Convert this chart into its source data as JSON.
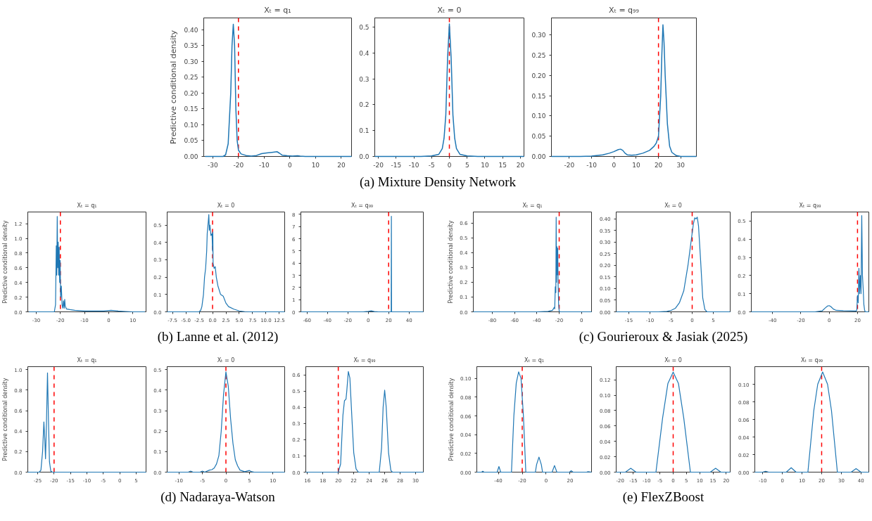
{
  "chart_data": [
    {
      "type": "line",
      "title": "Xₜ = q₁",
      "ylabel": "Predictive conditional density",
      "xlim": [
        -33.5,
        24
      ],
      "ylim": [
        0,
        0.437
      ],
      "xticks": [
        -30,
        -20,
        -10,
        0,
        10,
        20
      ],
      "yticks": [
        {
          "value": 0,
          "label": "0.00"
        },
        0.05,
        {
          "value": 0.1,
          "label": "0.10"
        },
        0.15,
        {
          "value": 0.2,
          "label": "0.20"
        },
        0.25,
        {
          "value": 0.3,
          "label": "0.30"
        },
        0.35,
        {
          "value": 0.4,
          "label": "0.40"
        }
      ],
      "series": [
        {
          "color": "#1f77b4",
          "x": [
            -33,
            -26,
            -25,
            -24,
            -23,
            -22.5,
            -22,
            -21.5,
            -21,
            -20.5,
            -20,
            -19,
            -17,
            -15,
            -13,
            -11,
            -9,
            -7,
            -5,
            -4,
            -3,
            -1,
            1,
            3,
            4,
            6,
            24
          ],
          "values": [
            0,
            0,
            0.005,
            0.04,
            0.2,
            0.35,
            0.417,
            0.35,
            0.15,
            0.05,
            0.02,
            0.008,
            0.003,
            0.001,
            0.003,
            0.009,
            0.011,
            0.013,
            0.015,
            0.01,
            0.004,
            0.002,
            0.001,
            0.002,
            0.001,
            0,
            0
          ]
        }
      ],
      "ref_lines": [
        {
          "axis": "x",
          "value": -20,
          "color": "#ff0000",
          "line_style": "dashed"
        }
      ]
    },
    {
      "type": "line",
      "title": "Xₜ = 0",
      "annotations": [
        "(a) Mixture Density Network"
      ],
      "xlim": [
        -21,
        21
      ],
      "ylim": [
        0,
        0.535
      ],
      "xticks": [
        -20,
        -15,
        -10,
        -5,
        0,
        5,
        10,
        15,
        20
      ],
      "yticks": [
        {
          "value": 0,
          "label": "0.0"
        },
        0.1,
        0.2,
        0.3,
        0.4,
        0.5
      ],
      "series": [
        {
          "color": "#1f77b4",
          "x": [
            -21,
            -8,
            -5,
            -3,
            -2,
            -1.5,
            -1,
            -0.5,
            0,
            0.5,
            1,
            1.5,
            2,
            3,
            5,
            8,
            21
          ],
          "values": [
            0,
            0,
            0.002,
            0.008,
            0.03,
            0.07,
            0.16,
            0.38,
            0.512,
            0.38,
            0.16,
            0.07,
            0.03,
            0.008,
            0.002,
            0,
            0
          ]
        }
      ],
      "ref_lines": [
        {
          "axis": "x",
          "value": 0,
          "color": "#ff0000",
          "line_style": "dashed"
        }
      ]
    },
    {
      "type": "line",
      "title": "Xₜ = q₉₉",
      "xlim": [
        -28,
        37
      ],
      "ylim": [
        0,
        0.342
      ],
      "xticks": [
        -20,
        -10,
        0,
        10,
        20,
        30
      ],
      "yticks": [
        {
          "value": 0,
          "label": "0.00"
        },
        0.05,
        {
          "value": 0.1,
          "label": "0.10"
        },
        0.15,
        {
          "value": 0.2,
          "label": "0.20"
        },
        0.25,
        {
          "value": 0.3,
          "label": "0.30"
        }
      ],
      "series": [
        {
          "color": "#1f77b4",
          "x": [
            -28,
            -15,
            -10,
            -5,
            -2,
            0,
            2,
            3,
            4,
            5,
            6,
            8,
            10,
            13,
            16,
            18,
            19,
            20,
            21,
            21.5,
            22,
            22.5,
            23,
            24,
            25,
            26,
            28,
            30,
            37
          ],
          "values": [
            0,
            0,
            0.001,
            0.004,
            0.008,
            0.012,
            0.017,
            0.018,
            0.015,
            0.008,
            0.004,
            0.003,
            0.004,
            0.008,
            0.015,
            0.025,
            0.033,
            0.05,
            0.15,
            0.25,
            0.325,
            0.28,
            0.2,
            0.08,
            0.025,
            0.01,
            0.002,
            0,
            0
          ]
        }
      ],
      "ref_lines": [
        {
          "axis": "x",
          "value": 20,
          "color": "#ff0000",
          "line_style": "dashed"
        }
      ]
    },
    {
      "type": "line",
      "title": "Xₜ = q₁",
      "ylabel": "Predictive conditional density",
      "xlim": [
        -33.5,
        15.5
      ],
      "ylim": [
        0,
        1.36
      ],
      "xticks": [
        -30,
        -20,
        -10,
        0,
        10
      ],
      "yticks": [
        {
          "value": 0,
          "label": "0.0"
        },
        0.2,
        0.4,
        0.6,
        0.8,
        {
          "value": 1,
          "label": "1.0"
        },
        1.2
      ],
      "series": [
        {
          "color": "#1f77b4",
          "x": [
            -33,
            -22.5,
            -22,
            -21.7,
            -21.5,
            -21.3,
            -21.1,
            -20.9,
            -20.7,
            -20.5,
            -20.3,
            -20.1,
            -19.9,
            -19.6,
            -19.3,
            -19,
            -18.7,
            -18.4,
            -18.2,
            -18,
            -17.5,
            -16,
            -14,
            -10,
            -5,
            -2,
            1,
            4,
            7,
            10,
            15
          ],
          "values": [
            0,
            0,
            0.1,
            0.9,
            0.5,
            1.3,
            0.6,
            0.95,
            0.5,
            0.88,
            0.4,
            0.7,
            0.2,
            0.35,
            0.1,
            0.05,
            0.15,
            0.05,
            0.17,
            0.08,
            0.04,
            0.03,
            0.02,
            0.01,
            0.01,
            0.01,
            0.02,
            0.01,
            0.005,
            0,
            0
          ]
        }
      ],
      "ref_lines": [
        {
          "axis": "x",
          "value": -20,
          "color": "#ff0000",
          "line_style": "dashed"
        }
      ]
    },
    {
      "type": "line",
      "title": "Xₜ = 0",
      "annotations": [
        "(b) Lanne et al. (2012)"
      ],
      "xlim": [
        -8.5,
        13.5
      ],
      "ylim": [
        0,
        0.575
      ],
      "xticks": [
        -7.5,
        {
          "value": -5,
          "label": "-5.0"
        },
        -2.5,
        {
          "value": 0,
          "label": "0.0"
        },
        2.5,
        {
          "value": 5,
          "label": "5.0"
        },
        7.5,
        {
          "value": 10,
          "label": "10.0"
        },
        12.5
      ],
      "yticks": [
        {
          "value": 0,
          "label": "0.0"
        },
        0.1,
        0.2,
        0.3,
        0.4,
        0.5
      ],
      "series": [
        {
          "color": "#1f77b4",
          "x": [
            -8.5,
            -2.5,
            -2.2,
            -2,
            -1.7,
            -1.5,
            -1.3,
            -1.1,
            -1,
            -0.8,
            -0.7,
            -0.6,
            -0.5,
            -0.3,
            -0.1,
            0,
            0.05,
            0.1,
            0.3,
            0.5,
            0.7,
            1,
            1.5,
            2,
            2.5,
            3,
            4,
            5,
            6,
            7,
            13.5
          ],
          "values": [
            0,
            0,
            0.01,
            0.03,
            0.1,
            0.2,
            0.25,
            0.35,
            0.45,
            0.52,
            0.56,
            0.47,
            0.5,
            0.44,
            0.45,
            0.35,
            0.46,
            0.28,
            0.25,
            0.26,
            0.2,
            0.15,
            0.1,
            0.09,
            0.05,
            0.03,
            0.015,
            0.005,
            0.001,
            0,
            0
          ]
        }
      ],
      "ref_lines": [
        {
          "axis": "x",
          "value": 0,
          "color": "#ff0000",
          "line_style": "dashed"
        }
      ]
    },
    {
      "type": "line",
      "title": "Xₜ = q₉₉",
      "xlim": [
        -66,
        54
      ],
      "ylim": [
        0,
        8.2
      ],
      "xticks": [
        -60,
        -40,
        -20,
        0,
        20,
        40
      ],
      "yticks": [
        0,
        1,
        2,
        3,
        4,
        5,
        6,
        7,
        8
      ],
      "series": [
        {
          "color": "#1f77b4",
          "x": [
            -66,
            -5,
            0,
            3,
            6,
            10,
            22.5,
            22.7,
            22.9,
            54
          ],
          "values": [
            0,
            0,
            0.04,
            0.08,
            0.02,
            0,
            0,
            7.85,
            0,
            0
          ]
        }
      ],
      "ref_lines": [
        {
          "axis": "x",
          "value": 20,
          "color": "#ff0000",
          "line_style": "dashed"
        }
      ]
    },
    {
      "type": "line",
      "title": "Xₜ = q₁",
      "ylabel": "Predictive conditional density",
      "xlim": [
        -97,
        9
      ],
      "ylim": [
        0,
        0.675
      ],
      "xticks": [
        -80,
        -60,
        -40,
        -20,
        0
      ],
      "yticks": [
        {
          "value": 0,
          "label": "0.0"
        },
        0.1,
        0.2,
        0.3,
        0.4,
        0.5,
        0.6
      ],
      "series": [
        {
          "color": "#1f77b4",
          "x": [
            -97,
            -40,
            -30,
            -26,
            -24.5,
            -24,
            -23.5,
            -23,
            -22.7,
            -22.4,
            -22,
            -21.7,
            -21.3,
            -21,
            -20.5,
            -20,
            -19.5,
            9
          ],
          "values": [
            0,
            0,
            0.003,
            0.01,
            0.03,
            0.02,
            0.17,
            0.13,
            0.64,
            0.2,
            0.44,
            0.25,
            0.43,
            0.2,
            0.05,
            0.005,
            0,
            0
          ]
        }
      ],
      "ref_lines": [
        {
          "axis": "x",
          "value": -20,
          "color": "#ff0000",
          "line_style": "dashed"
        }
      ]
    },
    {
      "type": "line",
      "title": "Xₜ = 0",
      "annotations": [
        "(c) Gourieroux & Jasiak (2025)"
      ],
      "xlim": [
        -18,
        9
      ],
      "ylim": [
        0,
        0.43
      ],
      "xticks": [
        -15,
        -10,
        -5,
        0,
        5
      ],
      "yticks": [
        {
          "value": 0,
          "label": "0.00"
        },
        0.05,
        {
          "value": 0.1,
          "label": "0.10"
        },
        0.15,
        {
          "value": 0.2,
          "label": "0.20"
        },
        0.25,
        {
          "value": 0.3,
          "label": "0.30"
        },
        0.35,
        {
          "value": 0.4,
          "label": "0.40"
        }
      ],
      "series": [
        {
          "color": "#1f77b4",
          "x": [
            -18,
            -8,
            -6,
            -5,
            -4,
            -3,
            -2,
            -1,
            -0.5,
            0,
            0.3,
            0.6,
            0.9,
            1.2,
            1.5,
            2,
            2.5,
            3,
            3.5,
            9
          ],
          "values": [
            0,
            0,
            0.002,
            0.006,
            0.015,
            0.04,
            0.09,
            0.2,
            0.27,
            0.34,
            0.38,
            0.405,
            0.4,
            0.408,
            0.37,
            0.22,
            0.06,
            0.01,
            0,
            0
          ]
        }
      ],
      "ref_lines": [
        {
          "axis": "x",
          "value": 0,
          "color": "#ff0000",
          "line_style": "dashed"
        }
      ]
    },
    {
      "type": "line",
      "title": "Xₜ = q₉₉",
      "xlim": [
        -55,
        28
      ],
      "ylim": [
        0,
        0.55
      ],
      "xticks": [
        -40,
        -20,
        0,
        20
      ],
      "yticks": [
        {
          "value": 0,
          "label": "0.0"
        },
        0.1,
        0.2,
        0.3,
        0.4,
        0.5
      ],
      "series": [
        {
          "color": "#1f77b4",
          "x": [
            -55,
            -10,
            -5,
            -3,
            -1,
            0,
            1,
            3,
            5,
            10,
            15,
            19,
            19.5,
            20,
            20.5,
            21,
            21.5,
            22,
            22.5,
            23,
            23.5,
            24,
            24.5,
            25,
            25.5,
            28
          ],
          "values": [
            0,
            0,
            0.005,
            0.02,
            0.033,
            0.034,
            0.03,
            0.015,
            0.008,
            0.006,
            0.005,
            0.004,
            0.01,
            0.09,
            0.05,
            0.24,
            0.1,
            0.2,
            0.1,
            0.53,
            0.2,
            0.13,
            0.04,
            0.01,
            0,
            0
          ]
        }
      ],
      "ref_lines": [
        {
          "axis": "x",
          "value": 20,
          "color": "#ff0000",
          "line_style": "dashed"
        }
      ]
    },
    {
      "type": "line",
      "title": "Xₜ = q₁",
      "ylabel": "Predictive conditional density",
      "xlim": [
        -28,
        8
      ],
      "ylim": [
        0,
        1.03
      ],
      "xticks": [
        -25,
        -20,
        -15,
        -10,
        -5,
        0,
        5
      ],
      "yticks": [
        {
          "value": 0,
          "label": "0.0"
        },
        0.2,
        0.4,
        0.6,
        0.8,
        {
          "value": 1,
          "label": "1.0"
        }
      ],
      "series": [
        {
          "color": "#1f77b4",
          "x": [
            -28,
            -24.5,
            -24,
            -23.5,
            -23.1,
            -22.8,
            -22.6,
            -22.3,
            -22,
            -21.7,
            -21.4,
            -21,
            -20.5,
            8
          ],
          "values": [
            0,
            0,
            0.02,
            0.2,
            0.49,
            0.3,
            0.13,
            0.5,
            0.97,
            0.5,
            0.1,
            0.01,
            0,
            0
          ]
        }
      ],
      "ref_lines": [
        {
          "axis": "x",
          "value": -20,
          "color": "#ff0000",
          "line_style": "dashed"
        }
      ]
    },
    {
      "type": "line",
      "title": "Xₜ = 0",
      "annotations": [
        "(d) Nadaraya-Watson"
      ],
      "xlim": [
        -12.5,
        12.5
      ],
      "ylim": [
        0,
        0.515
      ],
      "xticks": [
        -10,
        -5,
        0,
        5,
        10
      ],
      "yticks": [
        {
          "value": 0,
          "label": "0.0"
        },
        0.1,
        0.2,
        0.3,
        0.4,
        0.5
      ],
      "series": [
        {
          "color": "#1f77b4",
          "x": [
            -12.5,
            -8,
            -7.5,
            -7,
            -5.5,
            -5,
            -4.5,
            -3.5,
            -3,
            -2.5,
            -2,
            -1.5,
            -1,
            -0.5,
            0,
            0.5,
            1,
            1.5,
            2,
            2.5,
            3,
            4,
            5,
            5.5,
            6,
            12.5
          ],
          "values": [
            0,
            0,
            0.005,
            0,
            0,
            0.005,
            0,
            0.01,
            0.012,
            0.02,
            0.04,
            0.08,
            0.2,
            0.38,
            0.49,
            0.42,
            0.26,
            0.14,
            0.06,
            0.03,
            0.01,
            0.002,
            0.008,
            0.002,
            0,
            0
          ]
        }
      ],
      "ref_lines": [
        {
          "axis": "x",
          "value": 0,
          "color": "#ff0000",
          "line_style": "dashed"
        }
      ]
    },
    {
      "type": "line",
      "title": "Xₜ = q₉₉",
      "xlim": [
        15.8,
        31
      ],
      "ylim": [
        0,
        0.65
      ],
      "xticks": [
        16,
        18,
        20,
        22,
        24,
        26,
        28,
        30
      ],
      "yticks": [
        {
          "value": 0,
          "label": "0.0"
        },
        0.1,
        0.2,
        0.3,
        0.4,
        0.5,
        0.6
      ],
      "series": [
        {
          "color": "#1f77b4",
          "x": [
            15.8,
            20,
            20.3,
            20.6,
            20.8,
            21,
            21.1,
            21.3,
            21.5,
            21.8,
            22,
            22.3,
            22.6,
            25.3,
            25.6,
            25.8,
            26,
            26.2,
            26.5,
            26.8,
            27,
            31
          ],
          "values": [
            0,
            0,
            0.05,
            0.35,
            0.44,
            0.45,
            0.5,
            0.62,
            0.58,
            0.3,
            0.12,
            0.02,
            0,
            0,
            0.15,
            0.4,
            0.505,
            0.4,
            0.12,
            0.01,
            0,
            0
          ]
        }
      ],
      "ref_lines": [
        {
          "axis": "x",
          "value": 20,
          "color": "#ff0000",
          "line_style": "dashed"
        }
      ]
    },
    {
      "type": "line",
      "title": "Xₜ = q₁",
      "ylabel": "Predictive conditional density",
      "xlim": [
        -58,
        38
      ],
      "ylim": [
        0,
        0.1125
      ],
      "xticks": [
        -40,
        -20,
        0,
        20
      ],
      "yticks": [
        {
          "value": 0,
          "label": "0.00"
        },
        0.02,
        0.04,
        0.06,
        0.08,
        {
          "value": 0.1,
          "label": "0.10"
        }
      ],
      "series": [
        {
          "color": "#1f77b4",
          "x": [
            -58,
            -54,
            -53,
            -52,
            -41,
            -39.5,
            -38,
            -29,
            -27,
            -25,
            -23,
            -21,
            -19,
            -17,
            -9,
            -8,
            -6,
            -4,
            -3,
            5,
            7,
            9,
            19.5,
            21,
            22.5,
            34,
            35,
            38
          ],
          "values": [
            0,
            0,
            0.001,
            0,
            0,
            0.006,
            0,
            0,
            0.06,
            0.095,
            0.107,
            0.1,
            0.06,
            0,
            0,
            0.008,
            0.016,
            0.008,
            0,
            0,
            0.007,
            0,
            0,
            0.0015,
            0,
            0,
            0.0005,
            0
          ]
        }
      ],
      "ref_lines": [
        {
          "axis": "x",
          "value": -20,
          "color": "#ff0000",
          "line_style": "dashed"
        }
      ]
    },
    {
      "type": "line",
      "title": "Xₜ = 0",
      "annotations": [
        "(e) FlexZBoost"
      ],
      "xlim": [
        -21.5,
        21.5
      ],
      "ylim": [
        0,
        0.137
      ],
      "xticks": [
        -20,
        -15,
        -10,
        -5,
        0,
        5,
        10,
        15,
        20
      ],
      "yticks": [
        {
          "value": 0,
          "label": "0.00"
        },
        0.02,
        0.04,
        0.06,
        0.08,
        {
          "value": 0.1,
          "label": "0.10"
        },
        {
          "value": 0.12,
          "label": "0.12"
        }
      ],
      "series": [
        {
          "color": "#1f77b4",
          "x": [
            -21.5,
            -18,
            -16,
            -14,
            -6.5,
            -4,
            -2,
            0,
            2,
            4,
            6.5,
            14,
            16,
            18,
            21.5
          ],
          "values": [
            0,
            0,
            0.005,
            0,
            0,
            0.07,
            0.115,
            0.13,
            0.115,
            0.07,
            0,
            0,
            0.005,
            0,
            0
          ]
        }
      ],
      "ref_lines": [
        {
          "axis": "x",
          "value": 0,
          "color": "#ff0000",
          "line_style": "dashed"
        }
      ]
    },
    {
      "type": "line",
      "title": "Xₜ = q₉₉",
      "xlim": [
        -14,
        44
      ],
      "ylim": [
        0,
        0.12
      ],
      "xticks": [
        -10,
        0,
        10,
        20,
        30,
        40
      ],
      "yticks": [
        {
          "value": 0,
          "label": "0.00"
        },
        0.02,
        0.04,
        0.06,
        0.08,
        {
          "value": 0.1,
          "label": "0.10"
        }
      ],
      "series": [
        {
          "color": "#1f77b4",
          "x": [
            -14,
            -10,
            -8.5,
            -7,
            2,
            4.5,
            7,
            13,
            16,
            18,
            20.5,
            23,
            25,
            28,
            35,
            37.5,
            40,
            44
          ],
          "values": [
            0,
            0,
            0.001,
            0,
            0,
            0.005,
            0,
            0,
            0.07,
            0.1,
            0.114,
            0.1,
            0.07,
            0,
            0,
            0.004,
            0,
            0
          ]
        }
      ],
      "ref_lines": [
        {
          "axis": "x",
          "value": 20,
          "color": "#ff0000",
          "line_style": "dashed"
        }
      ]
    }
  ]
}
